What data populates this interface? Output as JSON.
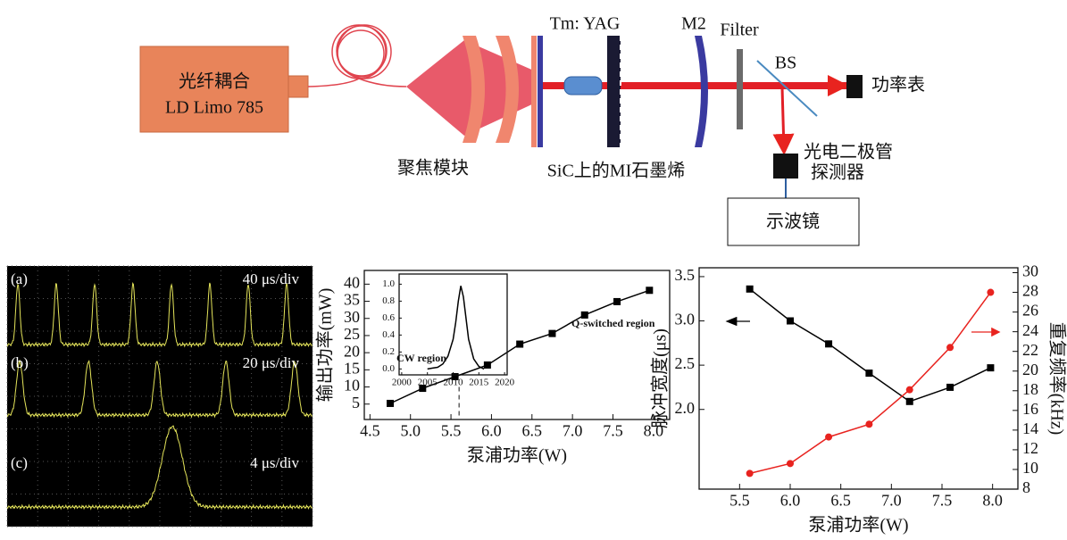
{
  "diagram": {
    "source_label_1": "光纤耦合",
    "source_label_2": "LD Limo 785",
    "crystal": "Tm: YAG",
    "mirror": "M2",
    "filter": "Filter",
    "splitter": "BS",
    "power_meter": "功率表",
    "focusing": "聚焦模块",
    "absorber": "SiC上的MI石墨烯",
    "detector_1": "光电二极管",
    "detector_2": "探测器",
    "oscilloscope": "示波镜"
  },
  "oscilloscope_traces": {
    "panels": [
      {
        "label": "(a)",
        "scale": "40 μs/div"
      },
      {
        "label": "(b)",
        "scale": "20 μs/div"
      },
      {
        "label": "(c)",
        "scale": "4 μs/div"
      }
    ]
  },
  "chart_data": [
    {
      "type": "line",
      "x_label": "泵浦功率(W)",
      "y_label": "输出功率(mW)",
      "x": [
        4.75,
        5.15,
        5.55,
        5.95,
        6.35,
        6.75,
        7.15,
        7.55,
        7.95
      ],
      "series": [
        {
          "color": "#000000",
          "marker": "square",
          "values": [
            5.2,
            9.6,
            13.0,
            16.4,
            22.5,
            25.6,
            31.0,
            34.9,
            38.2
          ]
        }
      ],
      "xlim": [
        4.43,
        8.2
      ],
      "ylim": [
        0.5,
        44
      ],
      "xticks": [
        4.5,
        {
          "value": 5,
          "label": "5.0"
        },
        5.5,
        {
          "value": 6,
          "label": "6.0"
        },
        6.5,
        {
          "value": 7,
          "label": "7.0"
        },
        7.5,
        {
          "value": 8,
          "label": "8.0"
        }
      ],
      "yticks": [
        5,
        10,
        15,
        20,
        25,
        30,
        35,
        40
      ],
      "threshold_line": 5.6,
      "annotations": [
        "CW region",
        "Q-switched region"
      ]
    },
    {
      "type": "line",
      "x": [
        2005,
        2006,
        2007,
        2008,
        2009,
        2010,
        2010.5,
        2011,
        2011.5,
        2012,
        2012.5,
        2013,
        2014,
        2015,
        2016
      ],
      "series": [
        {
          "color": "#000000",
          "values": [
            0,
            0.01,
            0.02,
            0.06,
            0.15,
            0.35,
            0.55,
            0.8,
            0.98,
            0.85,
            0.6,
            0.35,
            0.12,
            0.03,
            0
          ]
        }
      ],
      "xlim": [
        1999.5,
        2020.5
      ],
      "ylim": [
        -0.07,
        1.12
      ],
      "xticks": [
        2000,
        2005,
        2010,
        2015,
        2020
      ],
      "yticks": [
        {
          "value": 0,
          "label": "0.0"
        },
        0.2,
        0.4,
        0.6,
        0.8,
        {
          "value": 1,
          "label": "1.0"
        }
      ]
    },
    {
      "type": "line",
      "x_label": "泵浦功率(W)",
      "y_label": "脉冲宽度(μs)",
      "y2_label": "重复频率(kHz)",
      "x": [
        5.6,
        6.0,
        6.38,
        6.78,
        7.18,
        7.58,
        7.98
      ],
      "series": [
        {
          "color": "#000000",
          "marker": "square",
          "values": [
            3.36,
            3.0,
            2.74,
            2.41,
            2.09,
            2.25,
            2.47
          ]
        },
        {
          "color": "#e8231f",
          "marker": "circle",
          "axis": "y2",
          "values": [
            9.6,
            10.6,
            13.3,
            14.6,
            18.1,
            22.4,
            28.0
          ]
        }
      ],
      "xlim": [
        5.1,
        8.25
      ],
      "ylim": [
        1.1,
        3.6
      ],
      "y2lim": [
        8,
        30.5
      ],
      "xticks": [
        5.5,
        {
          "value": 6,
          "label": "6.0"
        },
        6.5,
        {
          "value": 7,
          "label": "7.0"
        },
        7.5,
        {
          "value": 8,
          "label": "8.0"
        }
      ],
      "yticks": [
        {
          "value": 2,
          "label": "2.0"
        },
        2.5,
        {
          "value": 3,
          "label": "3.0"
        },
        3.5
      ],
      "y2ticks": [
        8,
        10,
        12,
        14,
        16,
        18,
        20,
        22,
        24,
        26,
        28,
        30
      ]
    }
  ]
}
